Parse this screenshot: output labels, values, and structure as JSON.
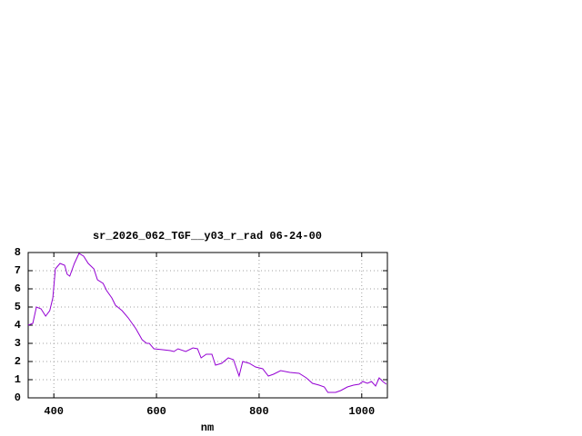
{
  "chart_data": {
    "type": "line",
    "title": "sr_2026_062_TGF__y03_r_rad 06-24-00",
    "x_label": "nm",
    "xlim": [
      350,
      1050
    ],
    "xticks": [
      400,
      600,
      800,
      1000
    ],
    "ylim": [
      0,
      8
    ],
    "yticks": [
      0,
      1,
      2,
      3,
      4,
      5,
      6,
      7,
      8
    ],
    "grid": true,
    "series": [
      {
        "color": "#9400d3",
        "x": [
          350,
          359,
          366,
          375,
          384,
          392,
          398,
          403,
          412,
          421,
          426,
          431,
          440,
          449,
          458,
          467,
          478,
          485,
          496,
          503,
          513,
          520,
          533,
          545,
          560,
          572,
          581,
          586,
          595,
          612,
          627,
          634,
          642,
          657,
          671,
          680,
          687,
          697,
          708,
          715,
          727,
          740,
          750,
          761,
          768,
          781,
          793,
          807,
          818,
          828,
          842,
          860,
          878,
          892,
          904,
          917,
          927,
          934,
          949,
          959,
          972,
          984,
          995,
          1002,
          1011,
          1019,
          1027,
          1034,
          1041,
          1048
        ],
        "values": [
          4.0,
          4.1,
          5.0,
          4.9,
          4.5,
          4.8,
          5.5,
          7.1,
          7.4,
          7.3,
          6.8,
          6.7,
          7.4,
          7.95,
          7.8,
          7.4,
          7.1,
          6.5,
          6.3,
          5.9,
          5.5,
          5.1,
          4.8,
          4.4,
          3.8,
          3.2,
          3.0,
          3.0,
          2.7,
          2.65,
          2.6,
          2.55,
          2.7,
          2.55,
          2.75,
          2.7,
          2.2,
          2.4,
          2.4,
          1.8,
          1.9,
          2.2,
          2.1,
          1.2,
          2.0,
          1.9,
          1.7,
          1.6,
          1.2,
          1.3,
          1.5,
          1.4,
          1.35,
          1.1,
          0.8,
          0.7,
          0.6,
          0.3,
          0.3,
          0.4,
          0.6,
          0.7,
          0.75,
          0.9,
          0.8,
          0.9,
          0.65,
          1.1,
          0.9,
          0.75
        ]
      }
    ]
  }
}
